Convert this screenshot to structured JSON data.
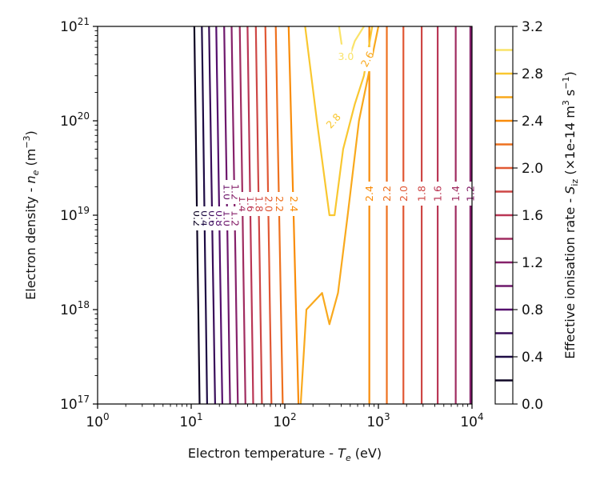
{
  "chart_data": {
    "type": "contour",
    "xlabel_prefix": "Electron temperature - ",
    "xlabel_sym": "T",
    "xlabel_sub": "e",
    "xlabel_suffix": " (eV)",
    "ylabel_prefix": "Electron density - ",
    "ylabel_sym": "n",
    "ylabel_sub": "e",
    "ylabel_suffix": " (m",
    "ylabel_unit_exp": "−3",
    "ylabel_end": ")",
    "xscale": "log",
    "yscale": "log",
    "xlim": [
      1,
      10000
    ],
    "ylim": [
      1e+17,
      1e+21
    ],
    "x_ticks": [
      {
        "base": "10",
        "exp": "0",
        "value": 1
      },
      {
        "base": "10",
        "exp": "1",
        "value": 10
      },
      {
        "base": "10",
        "exp": "2",
        "value": 100
      },
      {
        "base": "10",
        "exp": "3",
        "value": 1000
      },
      {
        "base": "10",
        "exp": "4",
        "value": 10000
      }
    ],
    "y_ticks": [
      {
        "base": "10",
        "exp": "17",
        "value": 1e+17
      },
      {
        "base": "10",
        "exp": "18",
        "value": 1e+18
      },
      {
        "base": "10",
        "exp": "19",
        "value": 1e+19
      },
      {
        "base": "10",
        "exp": "20",
        "value": 1e+20
      },
      {
        "base": "10",
        "exp": "21",
        "value": 1e+21
      }
    ],
    "colorbar": {
      "label_prefix": "Effective ionisation rate - ",
      "label_sym": "S",
      "label_sub": "iz",
      "label_mid": " (×1e-14 m",
      "label_exp1": "3",
      "label_mid2": " s",
      "label_exp2": "−1",
      "label_end": ")",
      "range": [
        0.0,
        3.2
      ],
      "tick_labels": [
        "0.0",
        "0.4",
        "0.8",
        "1.2",
        "1.6",
        "2.0",
        "2.4",
        "2.8",
        "3.2"
      ],
      "tick_values": [
        0.0,
        0.4,
        0.8,
        1.2,
        1.6,
        2.0,
        2.4,
        2.8,
        3.2
      ],
      "levels": [
        0.2,
        0.4,
        0.6,
        0.8,
        1.0,
        1.2,
        1.4,
        1.6,
        1.8,
        2.0,
        2.2,
        2.4,
        2.6,
        2.8,
        3.0
      ],
      "colormap": "inferno"
    },
    "contours": {
      "low_te_side": [
        {
          "level": 0.2,
          "label": "0.2",
          "te_at_bottom": 12.3,
          "te_at_top": 10.8
        },
        {
          "level": 0.4,
          "label": "0.4",
          "te_at_bottom": 14.8,
          "te_at_top": 13.0
        },
        {
          "level": 0.6,
          "label": "0.6",
          "te_at_bottom": 18.0,
          "te_at_top": 15.5
        },
        {
          "level": 0.8,
          "label": "0.8",
          "te_at_bottom": 21.5,
          "te_at_top": 18.5
        },
        {
          "level": 1.0,
          "label": "1.0",
          "te_at_bottom": 26.0,
          "te_at_top": 22.5
        },
        {
          "level": 1.2,
          "label": "1.2",
          "te_at_bottom": 31.5,
          "te_at_top": 27.0
        },
        {
          "level": 1.4,
          "label": "1.4",
          "te_at_bottom": 38.0,
          "te_at_top": 33.0
        },
        {
          "level": 1.6,
          "label": "1.6",
          "te_at_bottom": 46.0,
          "te_at_top": 40.0
        },
        {
          "level": 1.8,
          "label": "1.8",
          "te_at_bottom": 57.0,
          "te_at_top": 49.0
        },
        {
          "level": 2.0,
          "label": "2.0",
          "te_at_bottom": 72.0,
          "te_at_top": 62.0
        },
        {
          "level": 2.2,
          "label": "2.2",
          "te_at_bottom": 95.0,
          "te_at_top": 80.0
        },
        {
          "level": 2.4,
          "label": "2.4",
          "te_at_bottom": 140.0,
          "te_at_top": 110.0
        }
      ],
      "high_te_side": [
        {
          "level": 2.4,
          "label": "2.4",
          "te": 800
        },
        {
          "level": 2.2,
          "label": "2.2",
          "te": 1230
        },
        {
          "level": 2.0,
          "label": "2.0",
          "te": 1850
        },
        {
          "level": 1.8,
          "label": "1.8",
          "te": 2900
        },
        {
          "level": 1.6,
          "label": "1.6",
          "te": 4300
        },
        {
          "level": 1.4,
          "label": "1.4",
          "te": 6700
        },
        {
          "level": 1.2,
          "label": "1.2",
          "te": 9600
        },
        {
          "level": 1.0,
          "label": "",
          "te": 10000
        }
      ],
      "v_shaped": [
        {
          "level": 2.6,
          "label": "2.6",
          "points": [
            [
              148,
              1e+17
            ],
            [
              170,
              1e+18
            ],
            [
              250,
              1.5e+18
            ],
            [
              300,
              7e+17
            ],
            [
              370,
              1.5e+18
            ],
            [
              470,
              1e+19
            ],
            [
              620,
              1e+20
            ],
            [
              1000,
              1e+21
            ]
          ]
        },
        {
          "level": 2.8,
          "label": "2.8",
          "points": [
            [
              165,
              1e+21
            ],
            [
              220,
              1e+20
            ],
            [
              300,
              1e+19
            ],
            [
              340,
              1e+19
            ],
            [
              420,
              5e+19
            ],
            [
              560,
              1.5e+20
            ],
            [
              700,
              3e+20
            ],
            [
              860,
              1e+21
            ]
          ]
        },
        {
          "level": 3.0,
          "label": "3.0",
          "points": [
            [
              380,
              1e+21
            ],
            [
              420,
              5e+20
            ],
            [
              500,
              5e+20
            ],
            [
              560,
              7e+20
            ],
            [
              700,
              1e+21
            ]
          ]
        }
      ]
    }
  }
}
